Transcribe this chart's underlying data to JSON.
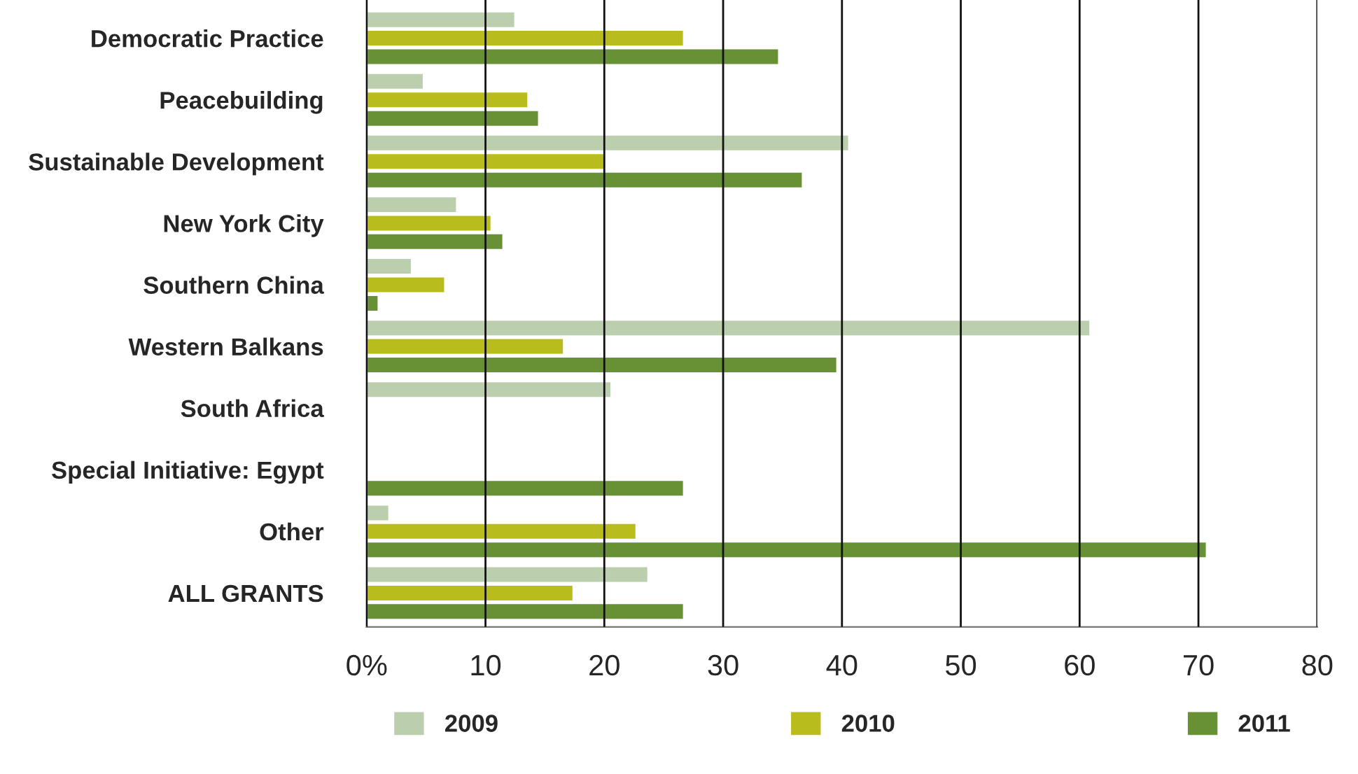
{
  "chart_data": {
    "type": "bar",
    "orientation": "horizontal",
    "categories": [
      "Democratic Practice",
      "Peacebuilding",
      "Sustainable Development",
      "New York City",
      "Southern China",
      "Western Balkans",
      "South Africa",
      "Special Initiative: Egypt",
      "Other",
      "ALL GRANTS"
    ],
    "series": [
      {
        "name": "2009",
        "color": "#bbcfae",
        "values": [
          12.5,
          4.8,
          40.6,
          7.6,
          3.8,
          60.9,
          20.6,
          null,
          1.9,
          23.7
        ]
      },
      {
        "name": "2010",
        "color": "#b8bc1c",
        "values": [
          26.7,
          13.6,
          20.0,
          10.5,
          6.6,
          16.6,
          null,
          null,
          22.7,
          17.4
        ]
      },
      {
        "name": "2011",
        "color": "#679134",
        "values": [
          34.7,
          14.5,
          36.7,
          11.5,
          1.0,
          39.6,
          null,
          26.7,
          70.7,
          26.7
        ]
      }
    ],
    "xlim": [
      0,
      80
    ],
    "xticks": [
      {
        "value": 0,
        "label": "0%"
      },
      10,
      20,
      30,
      40,
      50,
      60,
      70,
      80
    ],
    "grid": "x",
    "legend": "bottom"
  }
}
